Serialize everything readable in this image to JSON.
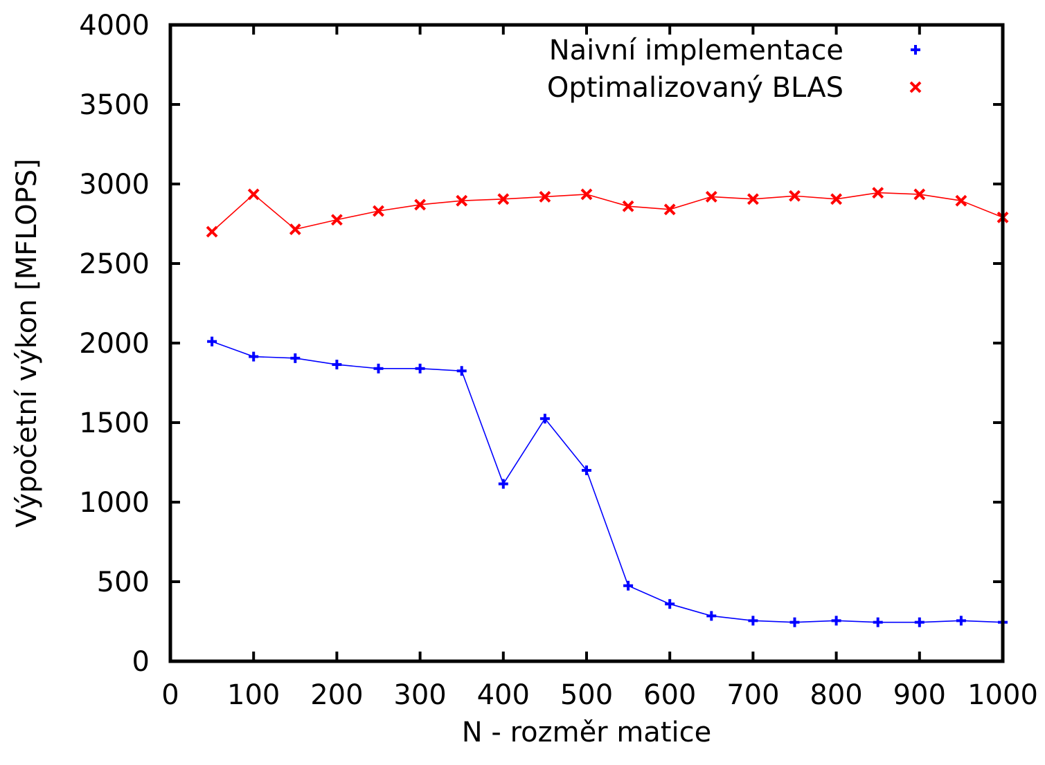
{
  "chart_data": {
    "type": "line",
    "title": "",
    "xlabel": "N - rozměr matice",
    "ylabel": "Výpočetní výkon [MFLOPS]",
    "xlim": [
      0,
      1000
    ],
    "ylim": [
      0,
      4000
    ],
    "xticks": [
      0,
      100,
      200,
      300,
      400,
      500,
      600,
      700,
      800,
      900,
      1000
    ],
    "yticks": [
      0,
      500,
      1000,
      1500,
      2000,
      2500,
      3000,
      3500,
      4000
    ],
    "grid": false,
    "legend_position": "top-right",
    "x": [
      50,
      100,
      150,
      200,
      250,
      300,
      350,
      400,
      450,
      500,
      550,
      600,
      650,
      700,
      750,
      800,
      850,
      900,
      950,
      1000
    ],
    "series": [
      {
        "name": "Naivní implementace",
        "color": "#0000ff",
        "marker": "plus",
        "values": [
          2010,
          1915,
          1905,
          1865,
          1840,
          1840,
          1825,
          1115,
          1525,
          1200,
          475,
          360,
          285,
          255,
          245,
          255,
          245,
          245,
          255,
          245
        ]
      },
      {
        "name": "Optimalizovaný BLAS",
        "color": "#ff0000",
        "marker": "cross",
        "values": [
          2700,
          2935,
          2715,
          2775,
          2830,
          2870,
          2895,
          2905,
          2920,
          2935,
          2860,
          2840,
          2920,
          2905,
          2925,
          2905,
          2945,
          2935,
          2895,
          2790
        ]
      }
    ]
  }
}
